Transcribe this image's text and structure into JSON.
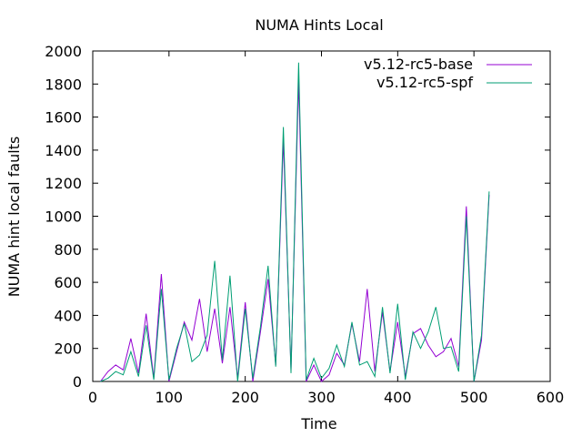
{
  "chart_data": {
    "type": "line",
    "title": "NUMA Hints Local",
    "xlabel": "Time",
    "ylabel": "NUMA hint local faults",
    "xlim": [
      0,
      600
    ],
    "ylim": [
      0,
      2000
    ],
    "xticks": [
      0,
      100,
      200,
      300,
      400,
      500,
      600
    ],
    "yticks": [
      0,
      200,
      400,
      600,
      800,
      1000,
      1200,
      1400,
      1600,
      1800,
      2000
    ],
    "grid": false,
    "legend_position": "top-right",
    "series": [
      {
        "name": "v5.12-rc5-base",
        "color": "#9400d3",
        "x": [
          10,
          20,
          30,
          40,
          50,
          60,
          70,
          80,
          90,
          100,
          110,
          120,
          130,
          140,
          150,
          160,
          170,
          180,
          190,
          200,
          210,
          220,
          230,
          240,
          250,
          260,
          270,
          280,
          290,
          300,
          310,
          320,
          330,
          340,
          350,
          360,
          370,
          380,
          390,
          400,
          410,
          420,
          430,
          440,
          450,
          460,
          470,
          480,
          490,
          500,
          510,
          520
        ],
        "y": [
          0,
          60,
          100,
          70,
          260,
          50,
          410,
          20,
          650,
          0,
          180,
          360,
          250,
          500,
          180,
          440,
          110,
          450,
          20,
          480,
          0,
          300,
          620,
          100,
          1460,
          70,
          1820,
          0,
          100,
          0,
          40,
          170,
          100,
          350,
          120,
          560,
          60,
          420,
          60,
          360,
          30,
          290,
          320,
          220,
          150,
          180,
          260,
          90,
          1060,
          0,
          250,
          1130
        ]
      },
      {
        "name": "v5.12-rc5-spf",
        "color": "#009e73",
        "x": [
          10,
          20,
          30,
          40,
          50,
          60,
          70,
          80,
          90,
          100,
          110,
          120,
          130,
          140,
          150,
          160,
          170,
          180,
          190,
          200,
          210,
          220,
          230,
          240,
          250,
          260,
          270,
          280,
          290,
          300,
          310,
          320,
          330,
          340,
          350,
          360,
          370,
          380,
          390,
          400,
          410,
          420,
          430,
          440,
          450,
          460,
          470,
          480,
          490,
          500,
          510,
          520
        ],
        "y": [
          0,
          20,
          60,
          40,
          180,
          30,
          340,
          10,
          560,
          10,
          200,
          350,
          120,
          160,
          280,
          730,
          130,
          640,
          0,
          440,
          20,
          330,
          700,
          90,
          1540,
          50,
          1930,
          10,
          140,
          20,
          80,
          220,
          90,
          360,
          100,
          120,
          30,
          450,
          50,
          470,
          10,
          300,
          200,
          300,
          450,
          200,
          210,
          60,
          1000,
          0,
          280,
          1150
        ]
      }
    ]
  }
}
